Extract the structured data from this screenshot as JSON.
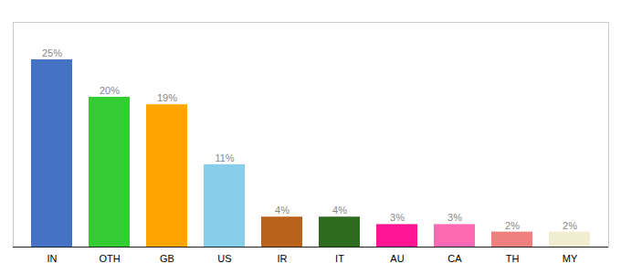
{
  "chart_data": {
    "type": "bar",
    "categories": [
      "IN",
      "OTH",
      "GB",
      "US",
      "IR",
      "IT",
      "AU",
      "CA",
      "TH",
      "MY"
    ],
    "values": [
      25,
      20,
      19,
      11,
      4,
      4,
      3,
      3,
      2,
      2
    ],
    "value_labels": [
      "25%",
      "20%",
      "19%",
      "11%",
      "4%",
      "4%",
      "3%",
      "3%",
      "2%",
      "2%"
    ],
    "colors": [
      "#4472C4",
      "#33CC33",
      "#FFA500",
      "#87CEEB",
      "#B8621B",
      "#2D6B1E",
      "#FF1493",
      "#FF69B4",
      "#F08080",
      "#F0EDD0"
    ],
    "data_labels": true,
    "ylim": [
      0,
      30
    ],
    "tick_labels": "x",
    "grid": false
  }
}
